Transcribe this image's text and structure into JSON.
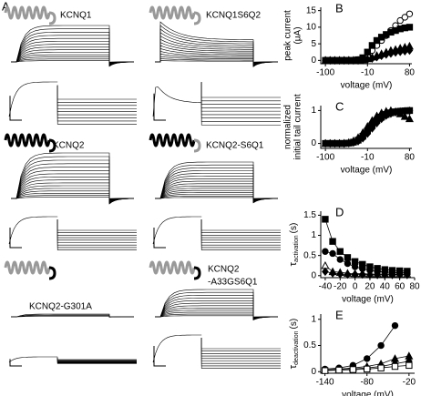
{
  "panel_a": {
    "label": "A",
    "constructs": [
      "KCNQ1",
      "KCNQ1S6Q2",
      "KCNQ2",
      "KCNQ2-S6Q1",
      "KCNQ2-G301A",
      [
        "KCNQ2",
        "-A33GS6Q1"
      ]
    ]
  },
  "chart_data": [
    {
      "type": "line",
      "label": "B",
      "ylabel": [
        "peak current",
        "(μA)"
      ],
      "xlabel": "voltage (mV)",
      "x": [
        -100,
        -90,
        -80,
        -70,
        -60,
        -50,
        -40,
        -30,
        -20,
        -10,
        0,
        10,
        20,
        30,
        40,
        50,
        60,
        70,
        80
      ],
      "xlim": [
        -110,
        85
      ],
      "xticks": [
        -100,
        -10,
        80
      ],
      "ylim": [
        -1,
        16
      ],
      "yticks": [
        0,
        5,
        10,
        15
      ],
      "series": [
        {
          "marker": "circle-open",
          "color": "#000",
          "values": [
            0,
            0,
            0,
            0,
            0,
            0,
            0,
            0.1,
            0.5,
            1.5,
            3,
            4.5,
            6,
            7.5,
            9,
            10.5,
            12,
            13,
            14
          ]
        },
        {
          "marker": "square",
          "color": "#000",
          "values": [
            0,
            0,
            0,
            0,
            0,
            0,
            0,
            0.2,
            0.8,
            2.5,
            4.5,
            6,
            7,
            7.8,
            8.5,
            9,
            9.5,
            9.8,
            10
          ]
        },
        {
          "marker": "triangle",
          "color": "#000",
          "values": [
            0,
            0,
            0,
            0,
            0,
            0,
            0,
            0,
            0.2,
            0.5,
            1,
            1.5,
            2,
            2.5,
            3,
            3.3,
            3.7,
            4,
            4.3
          ]
        },
        {
          "marker": "diamond",
          "color": "#000",
          "values": [
            0,
            0,
            0,
            0,
            0,
            0,
            0,
            0,
            0.1,
            0.3,
            0.6,
            1,
            1.4,
            1.8,
            2.1,
            2.4,
            2.6,
            2.8,
            3
          ]
        }
      ]
    },
    {
      "type": "line",
      "label": "C",
      "ylabel": [
        "normalized",
        "initial tail current"
      ],
      "xlabel": "voltage (mV)",
      "x": [
        -100,
        -90,
        -80,
        -70,
        -60,
        -50,
        -40,
        -30,
        -20,
        -10,
        0,
        10,
        20,
        30,
        40,
        50,
        60,
        70,
        80
      ],
      "xlim": [
        -110,
        85
      ],
      "xticks": [
        -100,
        -10,
        80
      ],
      "ylim": [
        -0.15,
        1.15
      ],
      "yticks": [
        0,
        1
      ],
      "series": [
        {
          "marker": "circle-open",
          "color": "#000",
          "values": [
            0,
            0,
            0,
            0,
            0,
            0.01,
            0.03,
            0.08,
            0.18,
            0.33,
            0.5,
            0.65,
            0.77,
            0.86,
            0.92,
            0.96,
            0.98,
            0.99,
            1
          ]
        },
        {
          "marker": "square",
          "color": "#000",
          "values": [
            0,
            0,
            0,
            0,
            0,
            0.01,
            0.04,
            0.1,
            0.22,
            0.38,
            0.55,
            0.7,
            0.8,
            0.88,
            0.93,
            0.96,
            0.98,
            0.99,
            1
          ]
        },
        {
          "marker": "triangle",
          "color": "#000",
          "values": [
            0,
            0,
            0,
            0,
            0.01,
            0.03,
            0.08,
            0.18,
            0.33,
            0.52,
            0.7,
            0.84,
            0.93,
            0.98,
            1,
            0.97,
            0.9,
            0.82,
            0.75
          ]
        },
        {
          "marker": "diamond",
          "color": "#000",
          "values": [
            0,
            0,
            0,
            0,
            0,
            0.01,
            0.03,
            0.07,
            0.16,
            0.3,
            0.46,
            0.62,
            0.75,
            0.85,
            0.91,
            0.95,
            0.97,
            0.98,
            0.99
          ]
        }
      ]
    },
    {
      "type": "line",
      "label": "D",
      "ylabel": {
        "symbol": "τ",
        "subscript": "activation",
        "unit": "(s)"
      },
      "xlabel": "voltage (mV)",
      "x": [
        -40,
        -30,
        -20,
        -10,
        0,
        10,
        20,
        30,
        40,
        50,
        60,
        70
      ],
      "xlim": [
        -46,
        80
      ],
      "xticks": [
        -40,
        -20,
        0,
        20,
        40,
        60,
        80
      ],
      "ylim": [
        -0.05,
        1.6
      ],
      "yticks": [
        0,
        0.5,
        1,
        1.5
      ],
      "series": [
        {
          "marker": "square",
          "color": "#000",
          "values": [
            1.4,
            0.85,
            0.6,
            0.45,
            0.35,
            0.28,
            0.22,
            0.18,
            0.15,
            0.13,
            0.12,
            0.11
          ]
        },
        {
          "marker": "circle",
          "color": "#000",
          "values": [
            0.6,
            0.55,
            0.4,
            0.3,
            0.22,
            0.17,
            0.13,
            0.1,
            0.09,
            0.08,
            0.07,
            0.07
          ]
        },
        {
          "marker": "triangle-open",
          "color": "#000",
          "values": [
            0.25,
            0.1,
            0.08,
            0.06,
            0.05,
            0.05,
            0.04,
            0.04,
            0.04,
            0.04,
            0.03,
            0.03
          ]
        },
        {
          "marker": "diamond",
          "color": "#000",
          "values": [
            0.1,
            0.06,
            0.04,
            0.03,
            0.03,
            0.03,
            0.02,
            0.02,
            0.02,
            0.02,
            0.02,
            0.02
          ]
        }
      ]
    },
    {
      "type": "line",
      "label": "E",
      "ylabel": {
        "symbol": "τ",
        "subscript": "deactivation",
        "unit": "(s)"
      },
      "xlabel": "voltage (mV)",
      "x": [
        -140,
        -120,
        -100,
        -80,
        -60,
        -40,
        -20
      ],
      "xlim": [
        -146,
        -12
      ],
      "xticks": [
        -140,
        -80,
        -20
      ],
      "ylim": [
        -0.03,
        1.1
      ],
      "yticks": [
        0,
        0.5,
        1
      ],
      "series": [
        {
          "marker": "circle",
          "color": "#000",
          "values": [
            0.05,
            0.07,
            0.12,
            0.25,
            0.5,
            0.88,
            null
          ]
        },
        {
          "marker": "triangle",
          "color": "#000",
          "values": [
            0.03,
            0.05,
            0.07,
            0.1,
            0.15,
            0.25,
            0.3
          ]
        },
        {
          "marker": "diamond",
          "color": "#000",
          "values": [
            0.03,
            0.04,
            0.05,
            0.07,
            0.1,
            0.15,
            0.2
          ]
        },
        {
          "marker": "square-open",
          "color": "#000",
          "values": [
            0.02,
            0.03,
            0.04,
            0.05,
            0.07,
            0.1,
            0.12
          ]
        }
      ]
    }
  ]
}
